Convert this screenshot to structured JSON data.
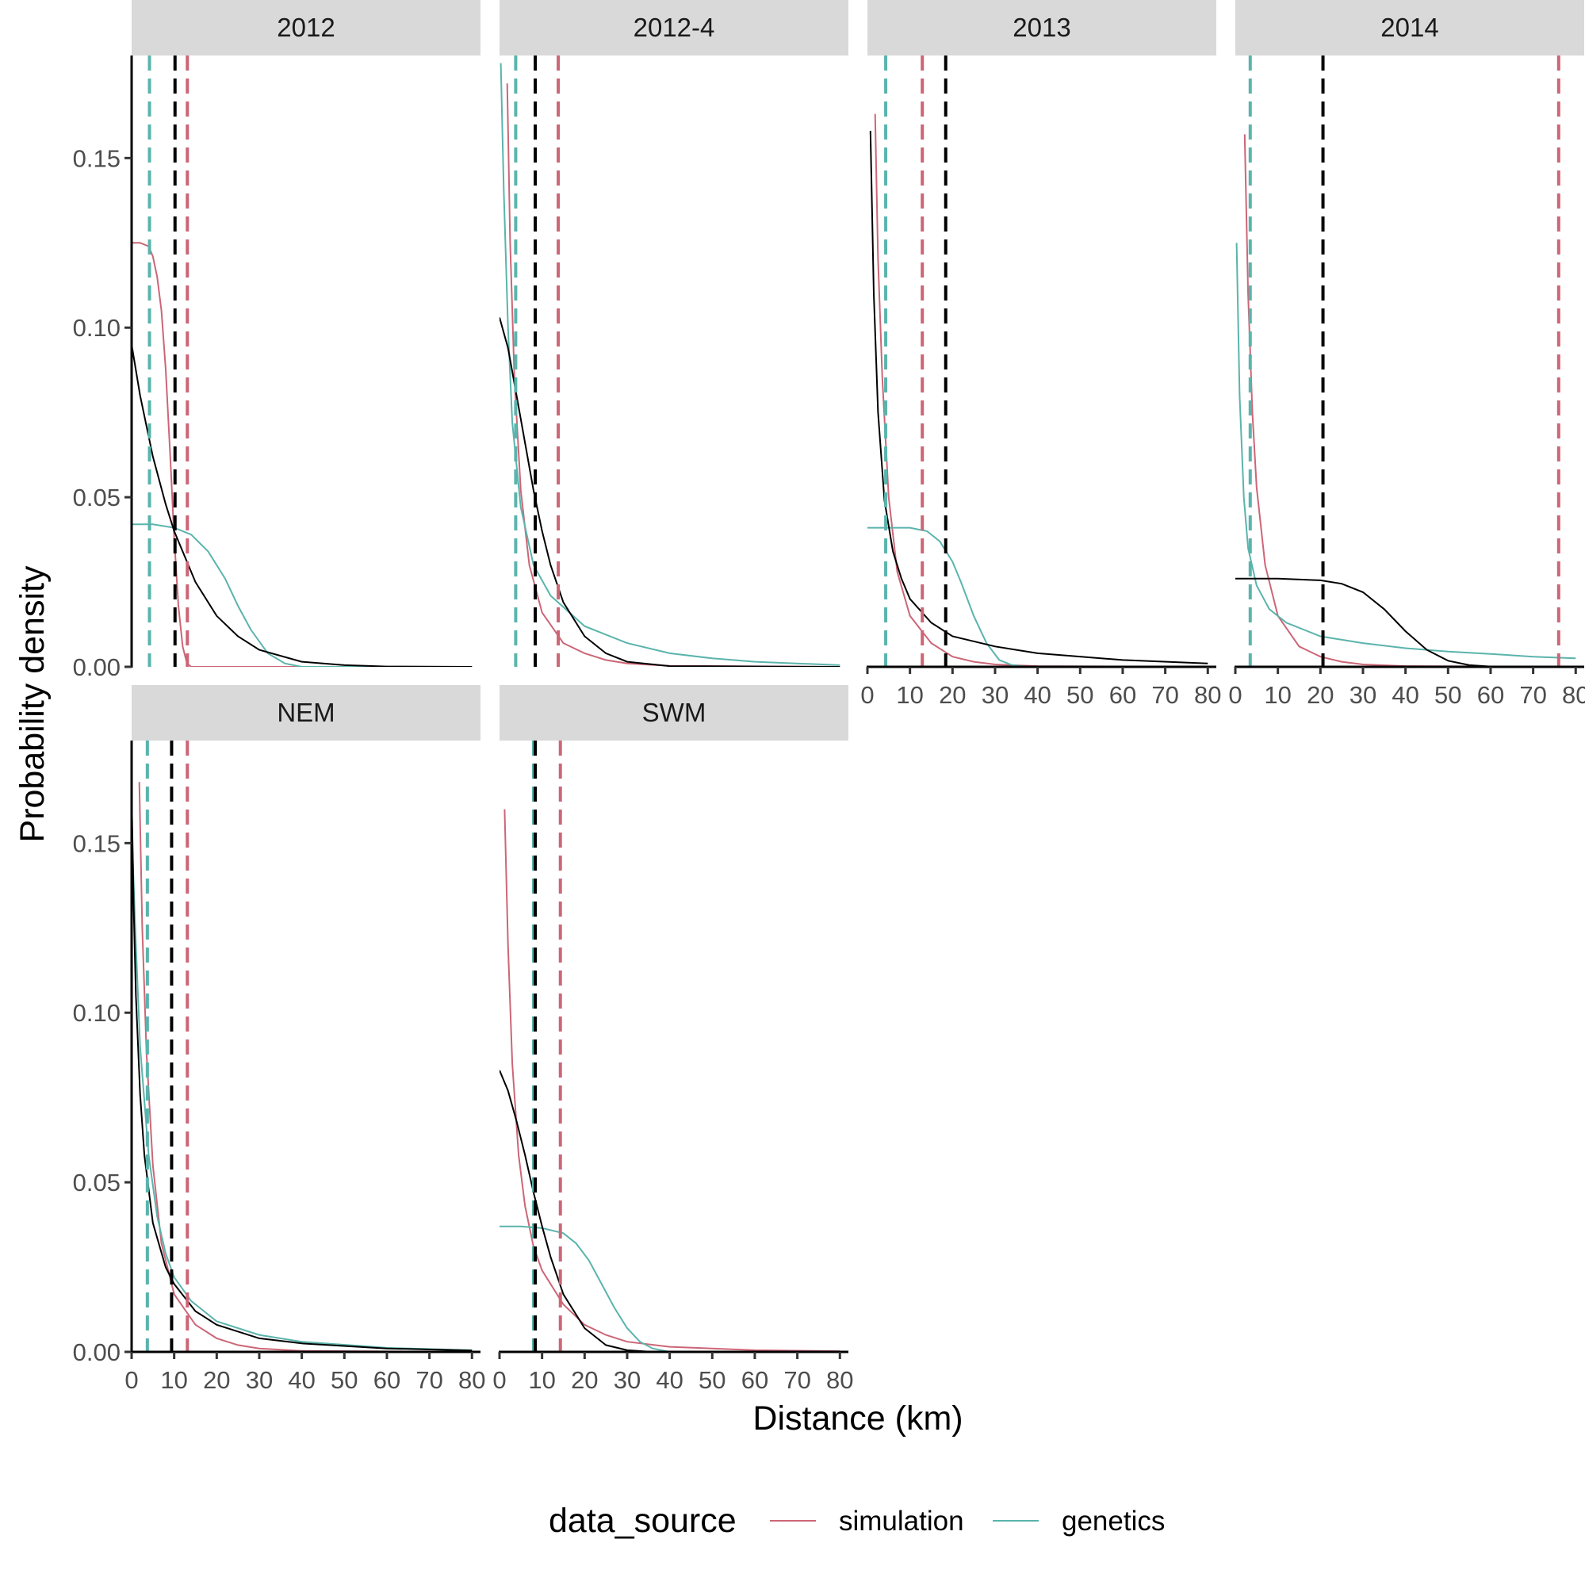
{
  "chart_data": {
    "type": "line",
    "xlabel": "Distance (km)",
    "ylabel": "Probability density",
    "xlim": [
      0,
      82
    ],
    "ylim": [
      0,
      0.18
    ],
    "x_ticks": [
      0,
      10,
      20,
      30,
      40,
      50,
      60,
      70,
      80
    ],
    "x_tick_labels": [
      "0",
      "10",
      "20",
      "30",
      "40",
      "50",
      "60",
      "70",
      "80"
    ],
    "y_ticks": [
      0,
      0.05,
      0.1,
      0.15
    ],
    "y_tick_labels": [
      "0.00",
      "0.05",
      "0.10",
      "0.15"
    ],
    "grid": false,
    "legend": {
      "title": "data_source",
      "position": "bottom",
      "entries": [
        {
          "label": "simulation",
          "color": "#cc6677"
        },
        {
          "label": "genetics",
          "color": "#5ab4ac"
        }
      ]
    },
    "colors": {
      "simulation": "#cc6677",
      "genetics": "#5ab4ac",
      "combined": "#000000"
    },
    "panels": [
      {
        "strip": "2012",
        "show_x_axis": false,
        "show_y_axis": true,
        "vlines": [
          {
            "x": 4.2,
            "color": "#5ab4ac"
          },
          {
            "x": 10.2,
            "color": "#000000"
          },
          {
            "x": 13.1,
            "color": "#cc6677"
          }
        ],
        "series": [
          {
            "color": "#cc6677",
            "x": [
              0,
              2,
              4,
              5,
              6,
              7,
              8,
              9,
              10,
              11,
              12,
              13,
              14,
              20,
              80
            ],
            "y": [
              0.125,
              0.125,
              0.124,
              0.121,
              0.115,
              0.105,
              0.088,
              0.064,
              0.038,
              0.018,
              0.006,
              0.001,
              0.0,
              0.0,
              0.0
            ]
          },
          {
            "color": "#5ab4ac",
            "x": [
              0,
              5,
              10,
              14,
              18,
              22,
              25,
              28,
              32,
              36,
              40,
              50,
              80
            ],
            "y": [
              0.042,
              0.042,
              0.041,
              0.039,
              0.034,
              0.026,
              0.018,
              0.011,
              0.004,
              0.001,
              0.0,
              0.0,
              0.0
            ]
          },
          {
            "color": "#000000",
            "x": [
              0,
              2,
              5,
              8,
              10,
              15,
              20,
              25,
              30,
              40,
              50,
              60,
              80
            ],
            "y": [
              0.095,
              0.08,
              0.062,
              0.048,
              0.04,
              0.025,
              0.015,
              0.009,
              0.005,
              0.0015,
              0.0005,
              0.0001,
              0.0
            ]
          }
        ]
      },
      {
        "strip": "2012-4",
        "show_x_axis": false,
        "show_y_axis": false,
        "vlines": [
          {
            "x": 3.8,
            "color": "#5ab4ac"
          },
          {
            "x": 8.4,
            "color": "#000000"
          },
          {
            "x": 13.8,
            "color": "#cc6677"
          }
        ],
        "series": [
          {
            "color": "#cc6677",
            "x": [
              1.8,
              2.5,
              3.5,
              5,
              7,
              10,
              15,
              20,
              25,
              30,
              40,
              80
            ],
            "y": [
              0.172,
              0.125,
              0.085,
              0.052,
              0.03,
              0.016,
              0.007,
              0.004,
              0.002,
              0.001,
              0.0003,
              0.0
            ]
          },
          {
            "color": "#5ab4ac",
            "x": [
              0.3,
              1,
              2,
              3,
              5,
              8,
              12,
              20,
              30,
              40,
              50,
              60,
              80
            ],
            "y": [
              0.178,
              0.14,
              0.1,
              0.072,
              0.047,
              0.03,
              0.021,
              0.012,
              0.007,
              0.004,
              0.0025,
              0.0015,
              0.0005
            ]
          },
          {
            "color": "#000000",
            "x": [
              0,
              2,
              4,
              6,
              8,
              10,
              12,
              15,
              20,
              25,
              30,
              40,
              80
            ],
            "y": [
              0.103,
              0.094,
              0.08,
              0.066,
              0.052,
              0.04,
              0.03,
              0.019,
              0.009,
              0.004,
              0.0015,
              0.0002,
              0.0
            ]
          }
        ]
      },
      {
        "strip": "2013",
        "show_x_axis": true,
        "show_y_axis": false,
        "vlines": [
          {
            "x": 4.3,
            "color": "#5ab4ac"
          },
          {
            "x": 12.9,
            "color": "#cc6677"
          },
          {
            "x": 18.4,
            "color": "#000000"
          }
        ],
        "series": [
          {
            "color": "#cc6677",
            "x": [
              1.8,
              2.5,
              3.5,
              5,
              7,
              10,
              15,
              20,
              25,
              30,
              40,
              80
            ],
            "y": [
              0.163,
              0.12,
              0.085,
              0.05,
              0.028,
              0.015,
              0.007,
              0.003,
              0.0015,
              0.0007,
              0.0002,
              0.0
            ]
          },
          {
            "color": "#5ab4ac",
            "x": [
              0,
              5,
              10,
              14,
              17,
              20,
              22,
              25,
              28,
              31,
              34,
              38,
              80
            ],
            "y": [
              0.041,
              0.041,
              0.041,
              0.04,
              0.037,
              0.031,
              0.025,
              0.015,
              0.007,
              0.002,
              0.0005,
              0.0,
              0.0
            ]
          },
          {
            "color": "#000000",
            "x": [
              0.7,
              1.5,
              2.5,
              4,
              6,
              8,
              10,
              15,
              20,
              30,
              40,
              60,
              80
            ],
            "y": [
              0.158,
              0.11,
              0.075,
              0.049,
              0.034,
              0.026,
              0.02,
              0.013,
              0.009,
              0.006,
              0.004,
              0.002,
              0.001
            ]
          }
        ]
      },
      {
        "strip": "2014",
        "show_x_axis": true,
        "show_y_axis": false,
        "vlines": [
          {
            "x": 3.5,
            "color": "#5ab4ac"
          },
          {
            "x": 20.6,
            "color": "#000000"
          },
          {
            "x": 76,
            "color": "#cc6677"
          }
        ],
        "series": [
          {
            "color": "#cc6677",
            "x": [
              2.2,
              3,
              4,
              5,
              7,
              10,
              15,
              20,
              25,
              30,
              40,
              80
            ],
            "y": [
              0.157,
              0.11,
              0.075,
              0.053,
              0.03,
              0.015,
              0.006,
              0.003,
              0.0015,
              0.0007,
              0.0002,
              0.0
            ]
          },
          {
            "color": "#5ab4ac",
            "x": [
              0.3,
              1,
              2,
              3,
              5,
              8,
              12,
              20,
              30,
              40,
              50,
              60,
              70,
              80
            ],
            "y": [
              0.125,
              0.08,
              0.05,
              0.035,
              0.024,
              0.017,
              0.013,
              0.009,
              0.007,
              0.0055,
              0.0045,
              0.0038,
              0.003,
              0.0025
            ]
          },
          {
            "color": "#000000",
            "x": [
              0,
              10,
              20,
              25,
              30,
              35,
              40,
              45,
              50,
              55,
              60,
              70,
              80
            ],
            "y": [
              0.026,
              0.026,
              0.0255,
              0.0245,
              0.022,
              0.017,
              0.0105,
              0.005,
              0.0018,
              0.0005,
              0.0001,
              0.0,
              0.0
            ]
          }
        ]
      },
      {
        "strip": "NEM",
        "show_x_axis": true,
        "show_y_axis": true,
        "vlines": [
          {
            "x": 3.7,
            "color": "#5ab4ac"
          },
          {
            "x": 9.4,
            "color": "#000000"
          },
          {
            "x": 13.1,
            "color": "#cc6677"
          }
        ],
        "series": [
          {
            "color": "#cc6677",
            "x": [
              1.8,
              2.5,
              3.5,
              5,
              7,
              10,
              15,
              20,
              25,
              30,
              40,
              80
            ],
            "y": [
              0.168,
              0.125,
              0.088,
              0.055,
              0.032,
              0.017,
              0.008,
              0.004,
              0.002,
              0.001,
              0.0003,
              0.0
            ]
          },
          {
            "color": "#5ab4ac",
            "x": [
              0,
              1,
              2,
              4,
              6,
              8,
              10,
              14,
              20,
              30,
              40,
              60,
              80
            ],
            "y": [
              0.155,
              0.12,
              0.09,
              0.058,
              0.04,
              0.029,
              0.022,
              0.015,
              0.009,
              0.005,
              0.003,
              0.0012,
              0.0005
            ]
          },
          {
            "color": "#000000",
            "x": [
              0,
              0.5,
              1,
              2,
              3,
              5,
              8,
              10,
              15,
              20,
              30,
              40,
              60,
              80
            ],
            "y": [
              0.165,
              0.13,
              0.105,
              0.076,
              0.058,
              0.038,
              0.025,
              0.02,
              0.012,
              0.008,
              0.004,
              0.0025,
              0.001,
              0.0004
            ]
          }
        ]
      },
      {
        "strip": "SWM",
        "show_x_axis": true,
        "show_y_axis": false,
        "vlines": [
          {
            "x": 8.0,
            "color": "#5ab4ac"
          },
          {
            "x": 8.4,
            "color": "#000000"
          },
          {
            "x": 14.3,
            "color": "#cc6677"
          }
        ],
        "series": [
          {
            "color": "#cc6677",
            "x": [
              1.2,
              2,
              3,
              4.5,
              6,
              8,
              10,
              15,
              20,
              25,
              30,
              40,
              60,
              80
            ],
            "y": [
              0.16,
              0.12,
              0.085,
              0.058,
              0.043,
              0.031,
              0.024,
              0.014,
              0.008,
              0.005,
              0.003,
              0.0015,
              0.0005,
              0.0002
            ]
          },
          {
            "color": "#5ab4ac",
            "x": [
              0,
              5,
              10,
              15,
              18,
              21,
              24,
              27,
              30,
              33,
              36,
              40,
              80
            ],
            "y": [
              0.037,
              0.037,
              0.0365,
              0.035,
              0.032,
              0.027,
              0.02,
              0.013,
              0.007,
              0.003,
              0.001,
              0.0,
              0.0
            ]
          },
          {
            "color": "#000000",
            "x": [
              0,
              2,
              4,
              6,
              8,
              10,
              12,
              15,
              20,
              25,
              30,
              35,
              40,
              80
            ],
            "y": [
              0.083,
              0.077,
              0.068,
              0.058,
              0.047,
              0.037,
              0.028,
              0.017,
              0.007,
              0.002,
              0.0005,
              0.0001,
              0.0,
              0.0
            ]
          }
        ]
      }
    ]
  }
}
